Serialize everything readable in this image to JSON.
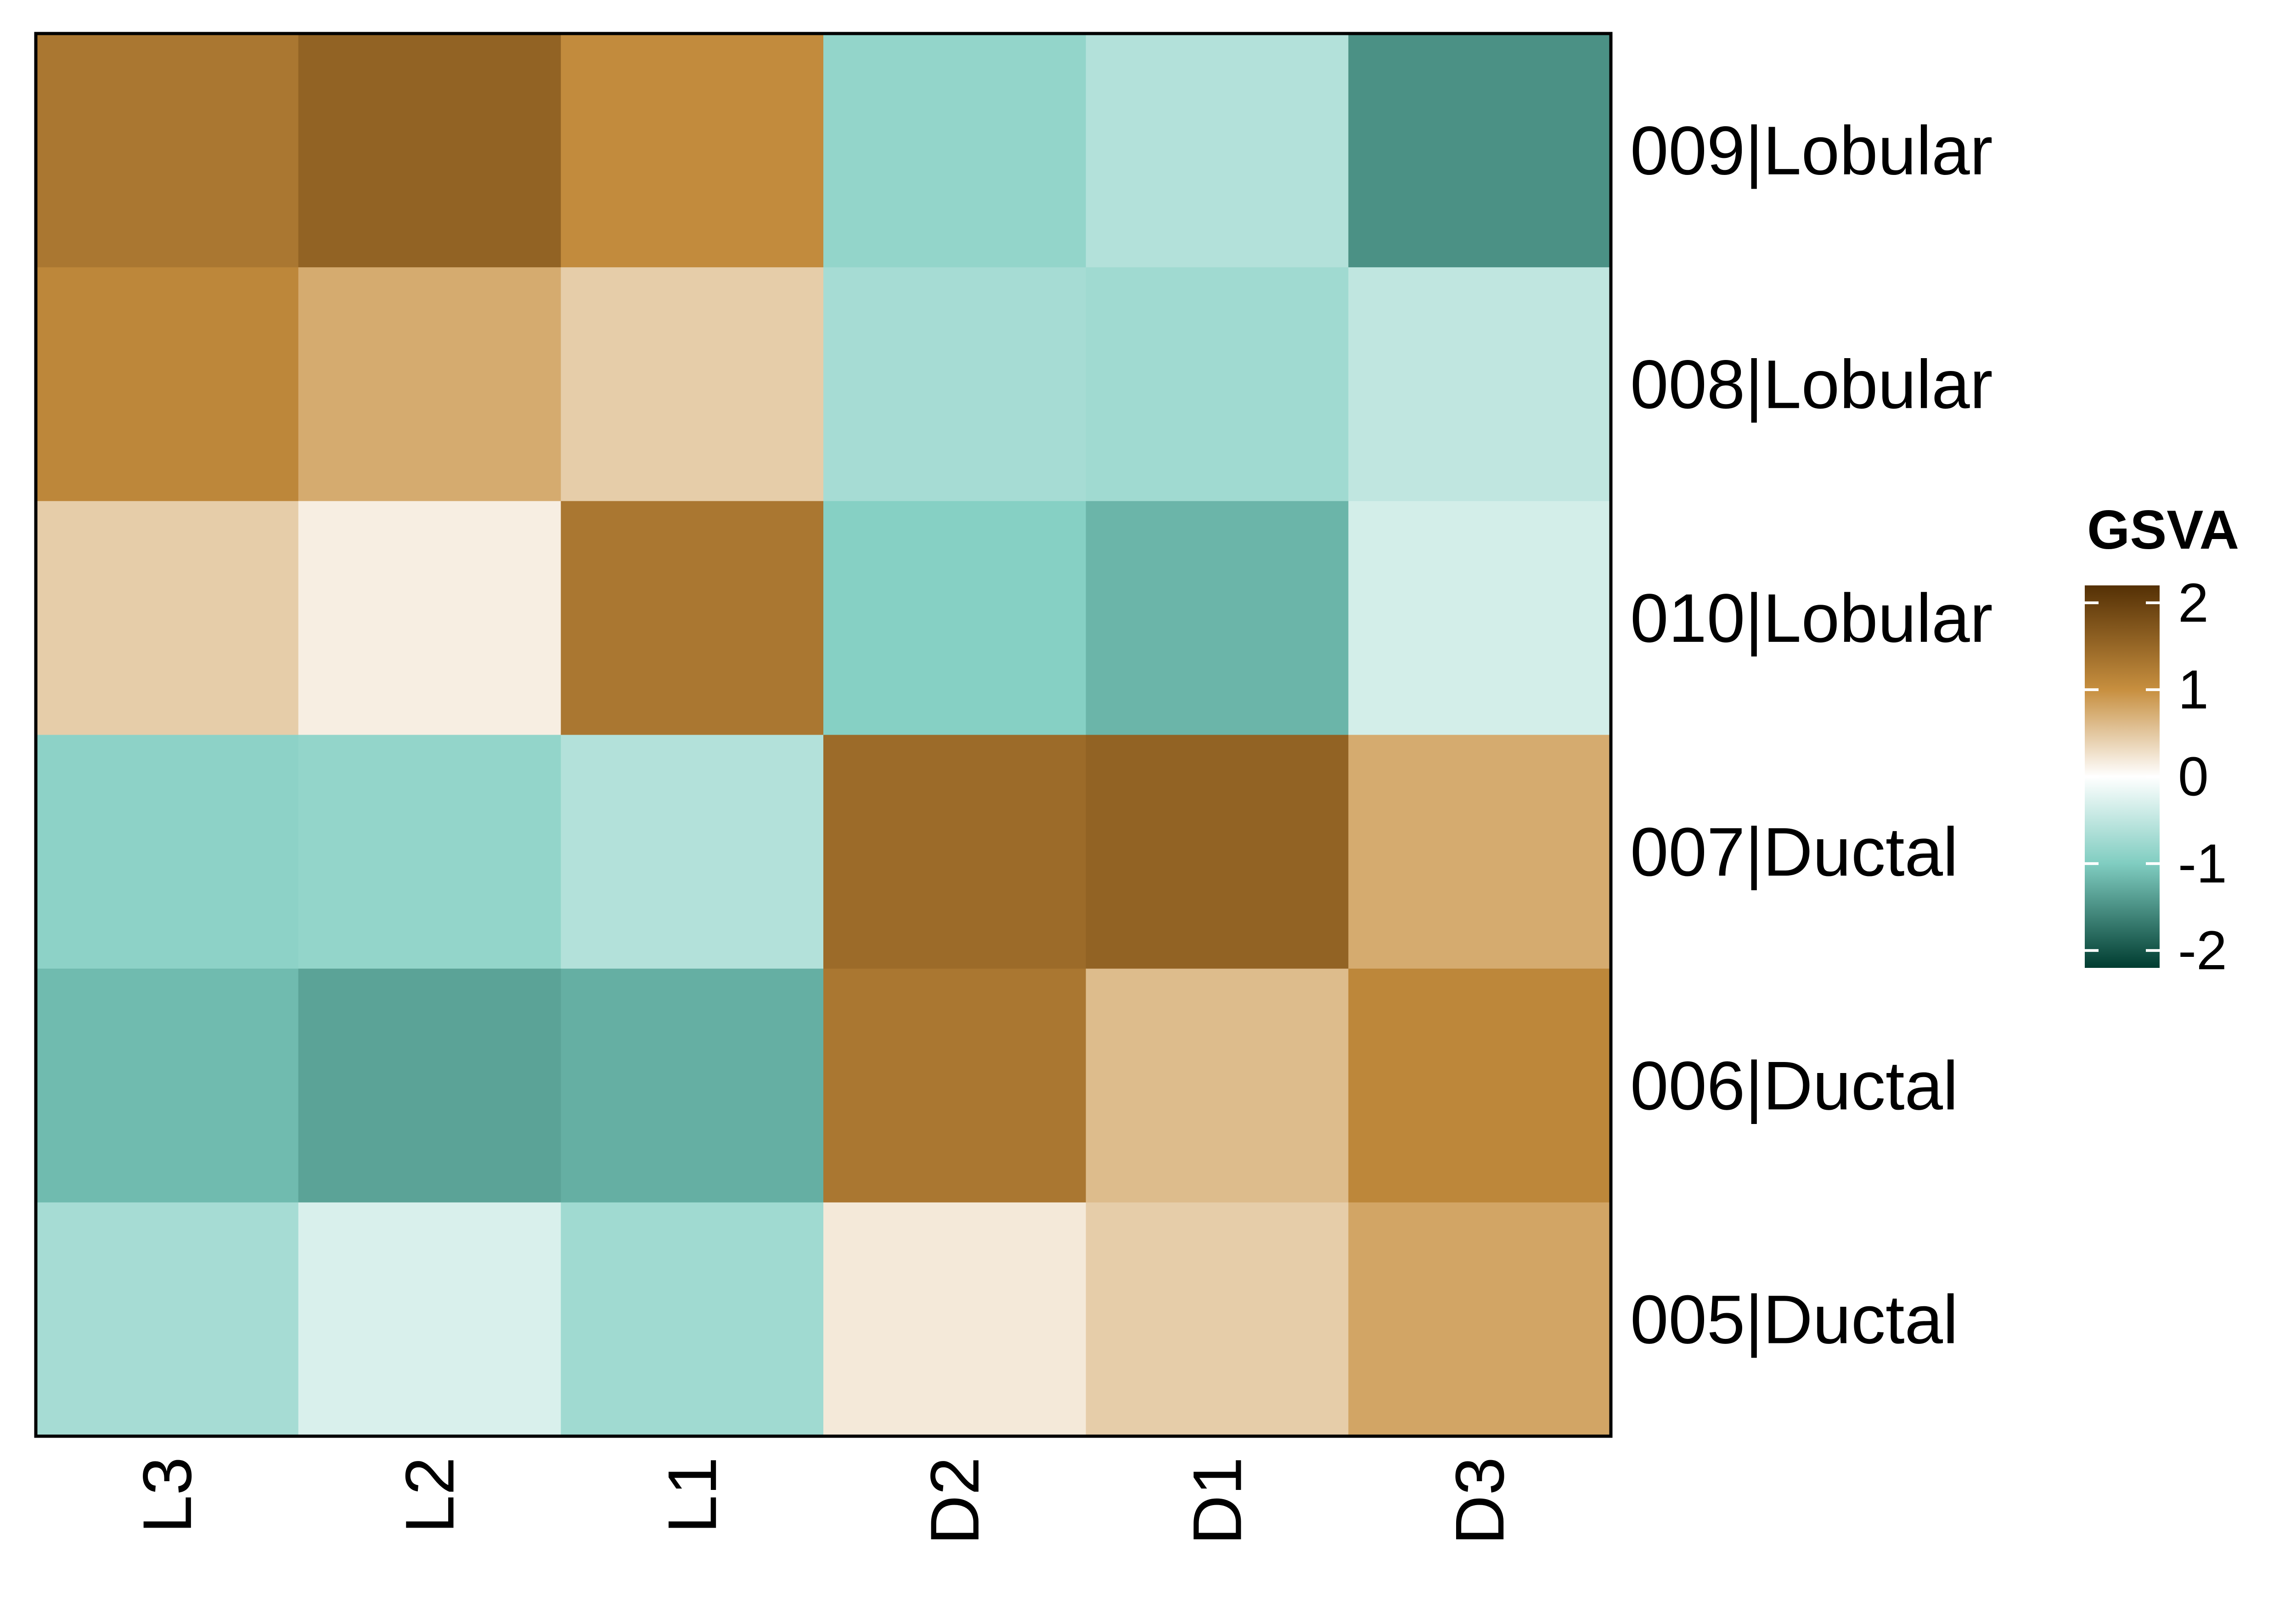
{
  "chart_data": {
    "type": "heatmap",
    "columns": [
      "L3",
      "L2",
      "L1",
      "D2",
      "D1",
      "D3"
    ],
    "rows": [
      "009|Lobular",
      "008|Lobular",
      "010|Lobular",
      "007|Ductal",
      "006|Ductal",
      "005|Ductal"
    ],
    "values": [
      [
        1.3,
        1.55,
        1.05,
        -0.85,
        -0.6,
        -1.5
      ],
      [
        1.1,
        0.75,
        0.45,
        -0.7,
        -0.75,
        -0.5
      ],
      [
        0.45,
        0.15,
        1.3,
        -0.95,
        -1.2,
        -0.35
      ],
      [
        -0.9,
        -0.85,
        -0.6,
        1.45,
        1.55,
        0.75
      ],
      [
        -1.15,
        -1.35,
        -1.25,
        1.3,
        0.6,
        1.1
      ],
      [
        -0.7,
        -0.3,
        -0.75,
        0.2,
        0.45,
        0.8
      ]
    ],
    "legend": {
      "title": "GSVA",
      "ticks": [
        2,
        1,
        0,
        -1,
        -2
      ],
      "range": [
        -2.2,
        2.2
      ],
      "placement": "right",
      "colors": {
        "min": "#003c30",
        "low": "#80cdc1",
        "mid": "#ffffff",
        "high": "#c78f3f",
        "max": "#543005"
      }
    },
    "grid": false
  }
}
